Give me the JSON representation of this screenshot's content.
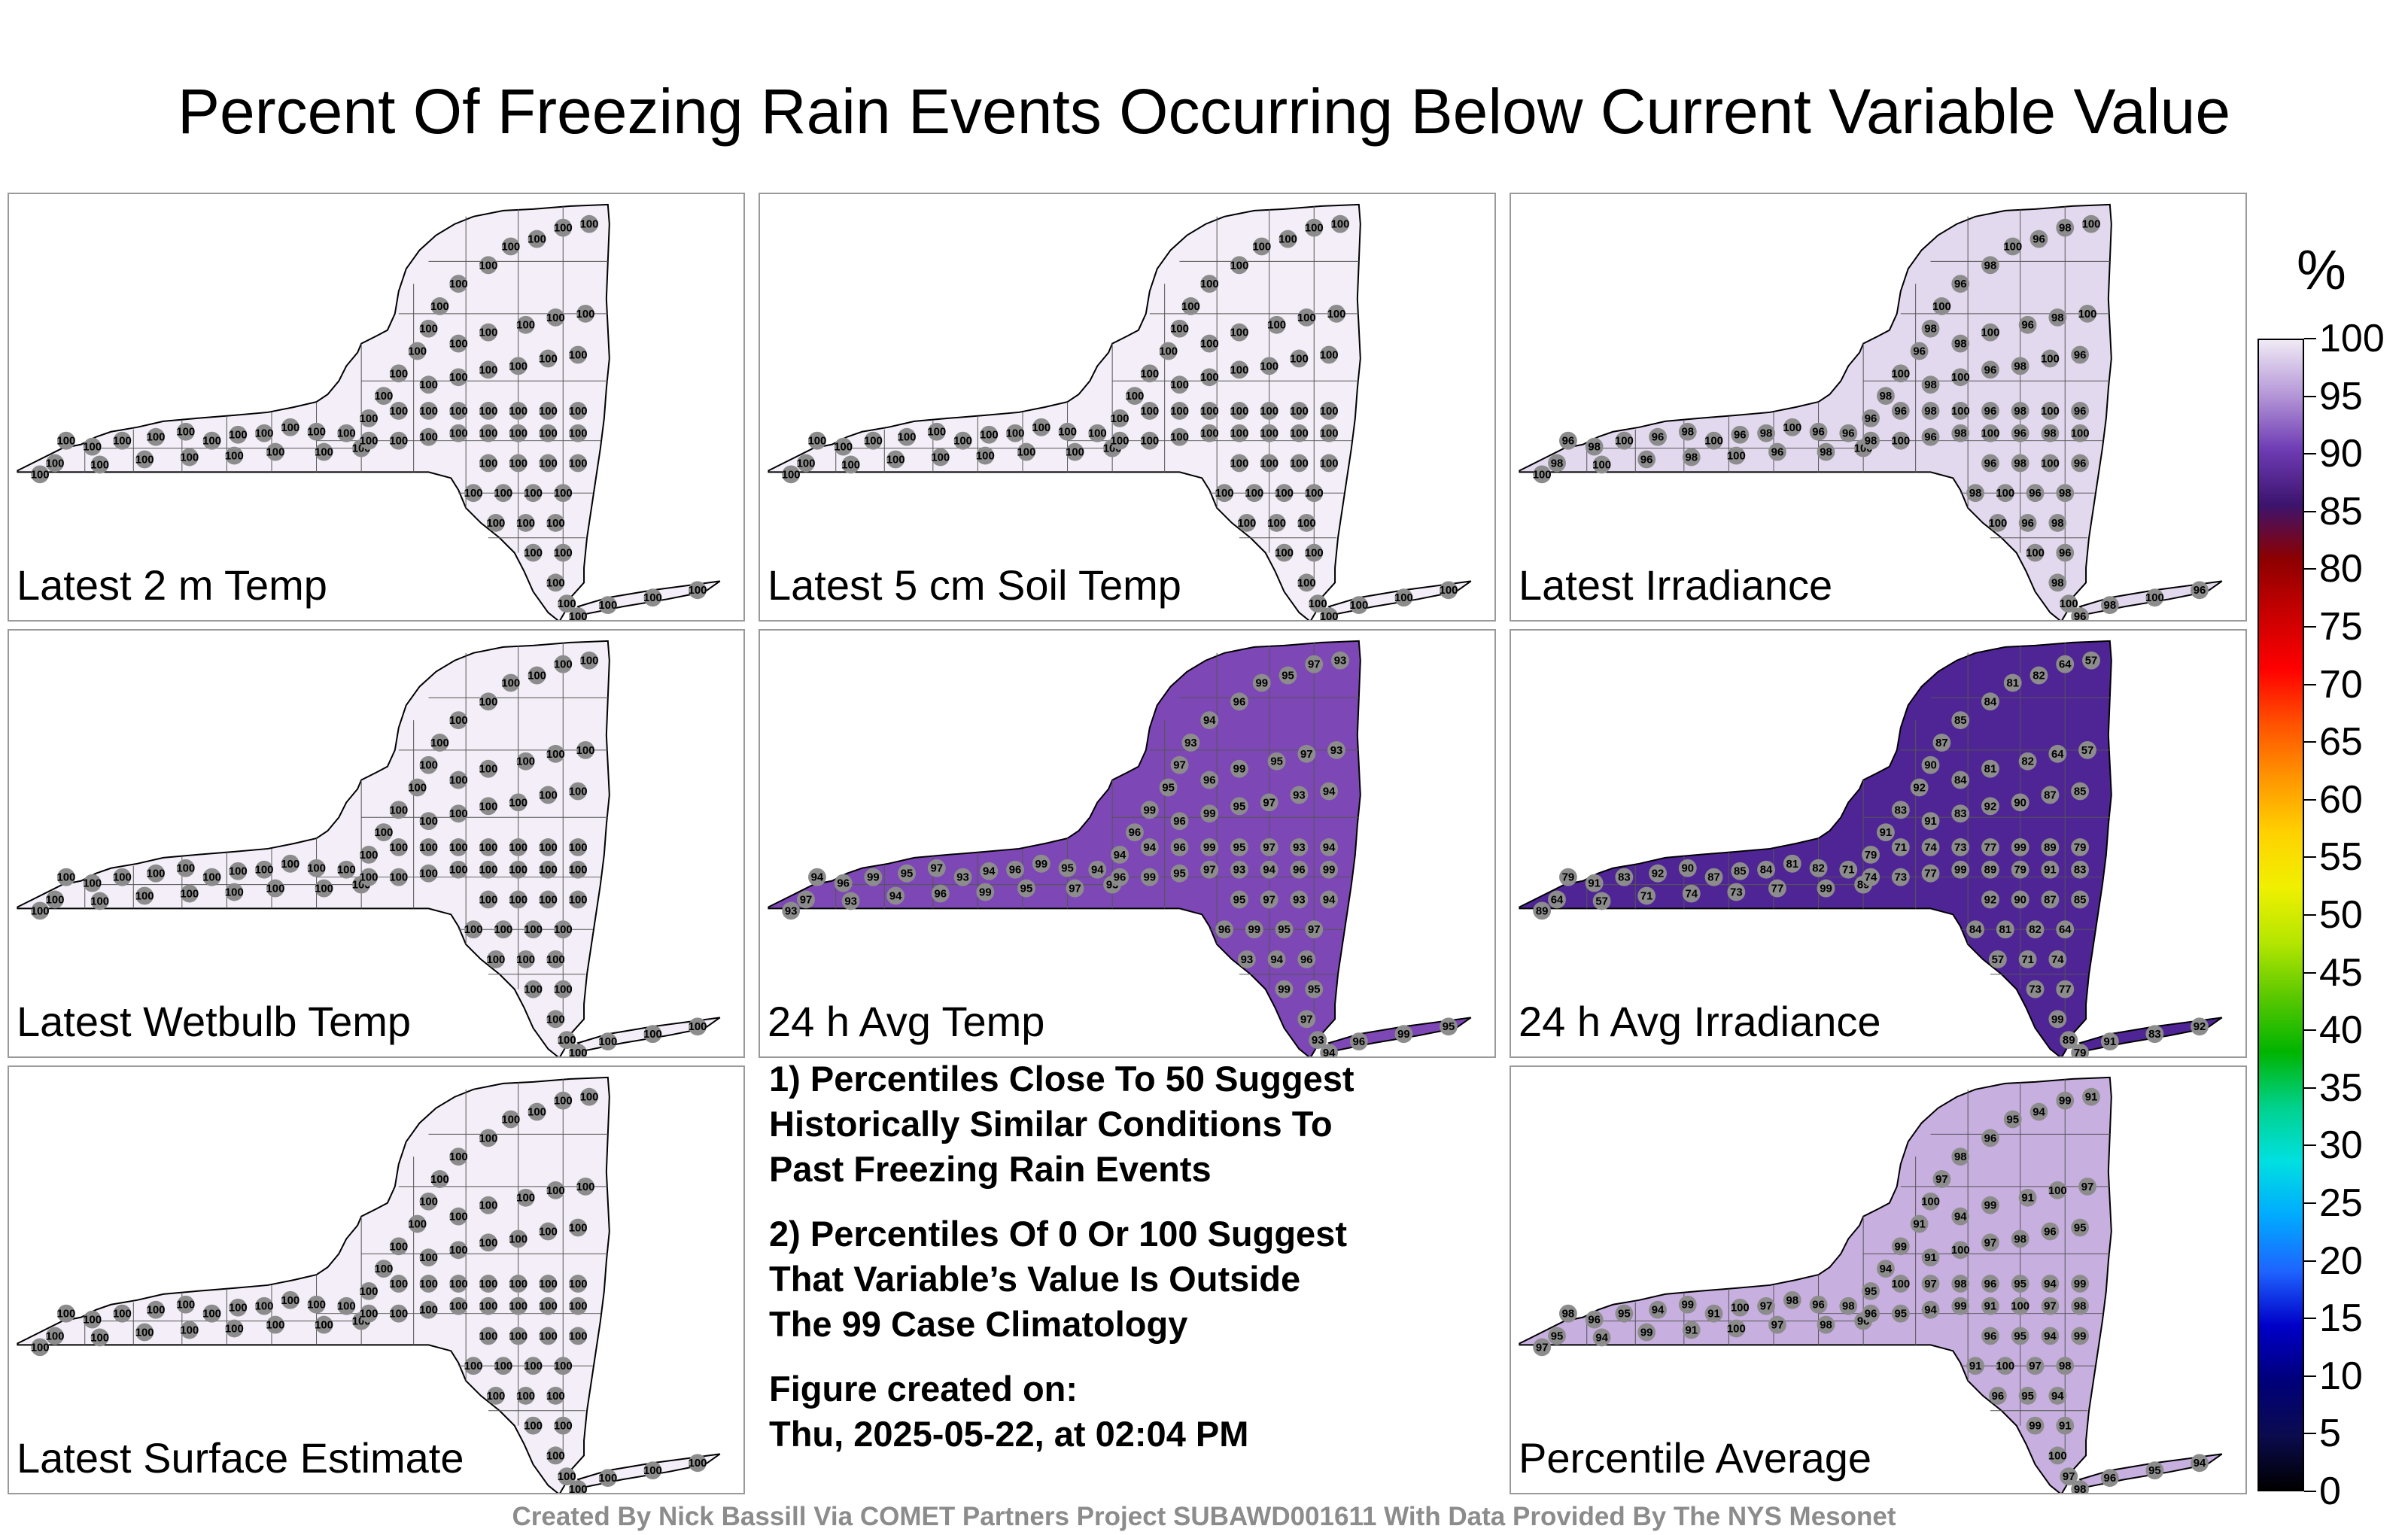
{
  "title": "Percent Of Freezing Rain Events Occurring Below Current Variable Value",
  "panels": [
    {
      "id": "p1",
      "label": "Latest 2 m Temp",
      "fill": "#f3eef7",
      "values": [
        "100"
      ]
    },
    {
      "id": "p2",
      "label": "Latest 5 cm Soil Temp",
      "fill": "#f3eef7",
      "values": [
        "100"
      ]
    },
    {
      "id": "p3",
      "label": "Latest Irradiance",
      "fill": "#e3d9ee",
      "values": [
        "100",
        "96",
        "98"
      ]
    },
    {
      "id": "p4",
      "label": "Latest Wetbulb Temp",
      "fill": "#f3eef7",
      "values": [
        "100"
      ]
    },
    {
      "id": "p5",
      "label": "24 h Avg Temp",
      "fill": "#7d47b6",
      "values": [
        "93",
        "94",
        "96",
        "99",
        "95",
        "97"
      ]
    },
    {
      "id": "p6",
      "label": "24 h Avg Irradiance",
      "fill": "#4f2596",
      "values": [
        "89",
        "79",
        "91",
        "83",
        "92",
        "90",
        "87",
        "85",
        "84",
        "81",
        "82",
        "64",
        "57",
        "71",
        "74",
        "73",
        "77",
        "99"
      ]
    },
    {
      "id": "p7",
      "label": "Latest Surface Estimate",
      "fill": "#f3eef7",
      "values": [
        "100"
      ]
    },
    {
      "id": "p8",
      "label": "Percentile Average",
      "fill": "#c7afdf",
      "values": [
        "97",
        "98",
        "96",
        "95",
        "94",
        "99",
        "91",
        "100"
      ]
    }
  ],
  "notes": {
    "n1": [
      "1) Percentiles Close To 50 Suggest",
      "Historically Similar Conditions To",
      "Past Freezing Rain Events"
    ],
    "n2": [
      "2) Percentiles Of 0 Or 100 Suggest",
      "That Variable’s Value Is Outside",
      "The 99 Case Climatology"
    ],
    "n3": [
      "Figure created on:",
      "Thu, 2025-05-22, at 02:04 PM"
    ]
  },
  "colorbar": {
    "unit": "%",
    "ticks": [
      "0",
      "5",
      "10",
      "15",
      "20",
      "25",
      "30",
      "35",
      "40",
      "45",
      "50",
      "55",
      "60",
      "65",
      "70",
      "75",
      "80",
      "85",
      "90",
      "95",
      "100"
    ],
    "colors": [
      "#000000",
      "#0b0b50",
      "#00007a",
      "#0000c8",
      "#1e64ff",
      "#00aaff",
      "#00e0e0",
      "#00d28c",
      "#00b400",
      "#5ac800",
      "#b4e600",
      "#f0f000",
      "#ffd200",
      "#ff9600",
      "#ff5000",
      "#ff0000",
      "#c80000",
      "#8c0000",
      "#3c146e",
      "#6e3cb4",
      "#b496d7",
      "#f0eaf5"
    ]
  },
  "footer": "Created By Nick Bassill Via COMET Partners Project SUBAWD001611 With Data Provided By The NYS Mesonet"
}
